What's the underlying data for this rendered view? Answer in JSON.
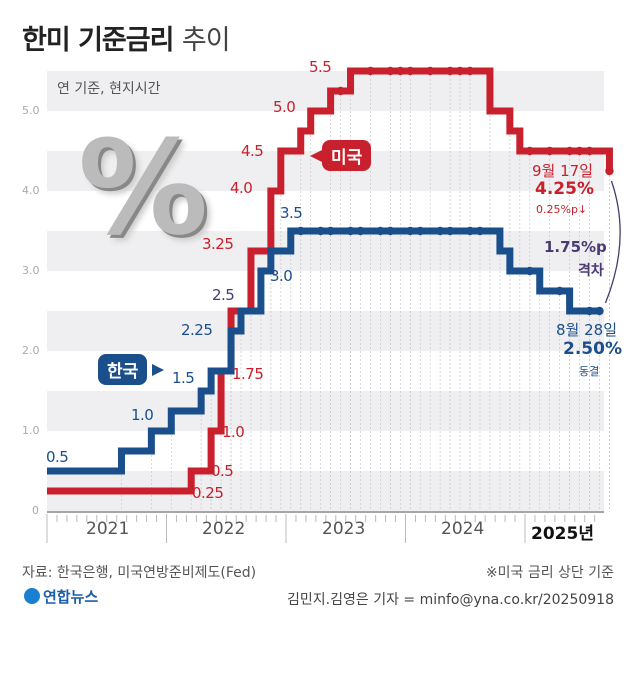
{
  "title": {
    "main": "한미 기준금리",
    "sub": "추이"
  },
  "basis": "연 기준, 현지시간",
  "source": "자료: 한국은행, 미국연방준비제도(Fed)",
  "note": "※미국 금리 상단 기준",
  "byline": "김민지.김영은 기자 = minfo@yna.co.kr/20250918",
  "logo": "연합뉴스",
  "percent_icon": "%",
  "chart_data": {
    "type": "line",
    "step": true,
    "ylim": [
      0,
      5.5
    ],
    "yticks": [
      "0",
      "1.0",
      "2.0",
      "3.0",
      "4.0",
      "5.0"
    ],
    "xticks": [
      "2021",
      "2022",
      "2023",
      "2024",
      "2025년"
    ],
    "grid": "horizontal bands",
    "colors": {
      "us": "#c8202c",
      "korea": "#1a4f8c",
      "gap": "#4a3a70"
    },
    "series": [
      {
        "name": "미국",
        "key": "us",
        "steps": [
          [
            "2021-01",
            0.25
          ],
          [
            "2022-03",
            0.5
          ],
          [
            "2022-05",
            1.0
          ],
          [
            "2022-06",
            1.75
          ],
          [
            "2022-07",
            2.5
          ],
          [
            "2022-09",
            3.25
          ],
          [
            "2022-11",
            4.0
          ],
          [
            "2022-12",
            4.5
          ],
          [
            "2023-02",
            4.75
          ],
          [
            "2023-03",
            5.0
          ],
          [
            "2023-05",
            5.25
          ],
          [
            "2023-07",
            5.5
          ],
          [
            "2024-09",
            5.0
          ],
          [
            "2024-11",
            4.75
          ],
          [
            "2024-12",
            4.5
          ],
          [
            "2025-09",
            4.25
          ]
        ],
        "end": "2025-09",
        "holds": [
          [
            "2023-06",
            5.25
          ],
          [
            "2023-09",
            5.5
          ],
          [
            "2023-11",
            5.5
          ],
          [
            "2023-12",
            5.5
          ],
          [
            "2024-01",
            5.5
          ],
          [
            "2024-03",
            5.5
          ],
          [
            "2024-05",
            5.5
          ],
          [
            "2024-06",
            5.5
          ],
          [
            "2024-07",
            5.5
          ],
          [
            "2025-01",
            4.5
          ],
          [
            "2025-03",
            4.5
          ],
          [
            "2025-05",
            4.5
          ],
          [
            "2025-06",
            4.5
          ],
          [
            "2025-07",
            4.5
          ],
          [
            "2025-09",
            4.25
          ]
        ],
        "labels": [
          "5.5",
          "5.0",
          "4.5",
          "4.0",
          "3.25",
          "1.75",
          "1.0",
          "0.5",
          "0.25"
        ]
      },
      {
        "name": "한국",
        "key": "korea",
        "steps": [
          [
            "2021-01",
            0.5
          ],
          [
            "2021-08",
            0.75
          ],
          [
            "2021-11",
            1.0
          ],
          [
            "2022-01",
            1.25
          ],
          [
            "2022-04",
            1.5
          ],
          [
            "2022-05",
            1.75
          ],
          [
            "2022-07",
            2.25
          ],
          [
            "2022-08",
            2.5
          ],
          [
            "2022-10",
            3.0
          ],
          [
            "2022-11",
            3.25
          ],
          [
            "2023-01",
            3.5
          ],
          [
            "2024-10",
            3.25
          ],
          [
            "2024-11",
            3.0
          ],
          [
            "2025-02",
            2.75
          ],
          [
            "2025-05",
            2.5
          ]
        ],
        "end": "2025-08",
        "holds": [
          [
            "2023-02",
            3.5
          ],
          [
            "2023-04",
            3.5
          ],
          [
            "2023-05",
            3.5
          ],
          [
            "2023-07",
            3.5
          ],
          [
            "2023-08",
            3.5
          ],
          [
            "2023-10",
            3.5
          ],
          [
            "2023-11",
            3.5
          ],
          [
            "2024-01",
            3.5
          ],
          [
            "2024-02",
            3.5
          ],
          [
            "2024-04",
            3.5
          ],
          [
            "2024-05",
            3.5
          ],
          [
            "2024-07",
            3.5
          ],
          [
            "2024-08",
            3.5
          ],
          [
            "2025-01",
            3.0
          ],
          [
            "2025-04",
            2.75
          ],
          [
            "2025-07",
            2.5
          ],
          [
            "2025-08",
            2.5
          ]
        ],
        "labels": [
          "3.5",
          "3.0",
          "2.25",
          "1.5",
          "1.0",
          "0.5"
        ]
      }
    ],
    "shared_label": "2.5",
    "annotations": {
      "us": {
        "date": "9월 17일",
        "value": "4.25%",
        "change": "0.25%p↓"
      },
      "gap": {
        "value": "1.75%p",
        "label": "격차"
      },
      "korea": {
        "date": "8월 28일",
        "value": "2.50%",
        "status": "동결"
      }
    }
  }
}
